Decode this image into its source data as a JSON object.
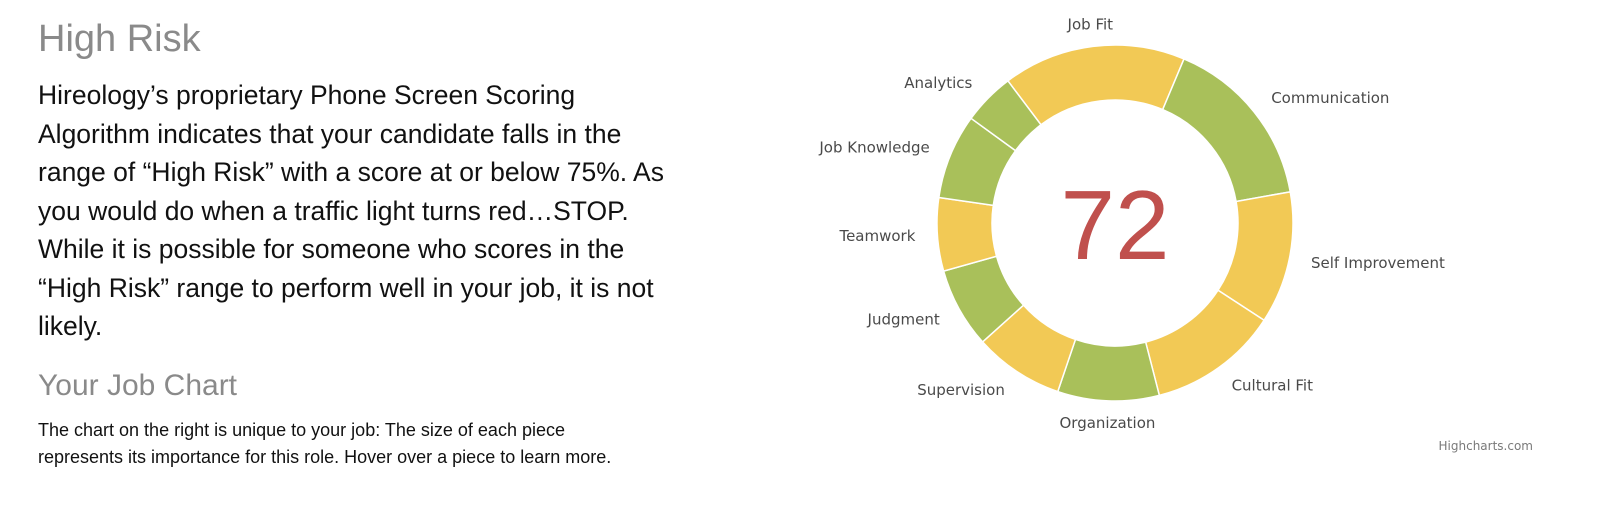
{
  "colors": {
    "green": "#a9c05a",
    "yellow": "#f2c955",
    "score_red": "#c0504d",
    "heading_gray": "#8a8a8a",
    "text_black": "#111111"
  },
  "risk_section": {
    "title": "High Risk",
    "body": "Hireology’s proprietary Phone Screen Scoring Algorithm indicates that your candidate falls in the range of “High Risk” with a score at or below 75%. As you would do when a traffic light turns red…STOP. While it is possible for someone who scores in the “High Risk” range to perform well in your job, it is not likely."
  },
  "job_chart_section": {
    "title": "Your Job Chart",
    "body": "The chart on the right is unique to your job: The size of each piece represents its importance for this role. Hover over a piece to learn more."
  },
  "chart_data": {
    "type": "pie",
    "variant": "donut",
    "center_label": "72",
    "credits": "Highcharts.com",
    "start_angle_deg": -37,
    "slices": [
      {
        "name": "Job Fit",
        "value": 15.5,
        "color": "yellow"
      },
      {
        "name": "Communication",
        "value": 14.8,
        "color": "green"
      },
      {
        "name": "Self Improvement",
        "value": 11.2,
        "color": "yellow"
      },
      {
        "name": "Cultural Fit",
        "value": 11.0,
        "color": "yellow"
      },
      {
        "name": "Organization",
        "value": 8.6,
        "color": "green"
      },
      {
        "name": "Supervision",
        "value": 7.6,
        "color": "yellow"
      },
      {
        "name": "Judgment",
        "value": 6.8,
        "color": "green"
      },
      {
        "name": "Teamwork",
        "value": 6.2,
        "color": "yellow"
      },
      {
        "name": "Job Knowledge",
        "value": 7.2,
        "color": "green"
      },
      {
        "name": "Analytics",
        "value": 4.4,
        "color": "green"
      }
    ]
  }
}
